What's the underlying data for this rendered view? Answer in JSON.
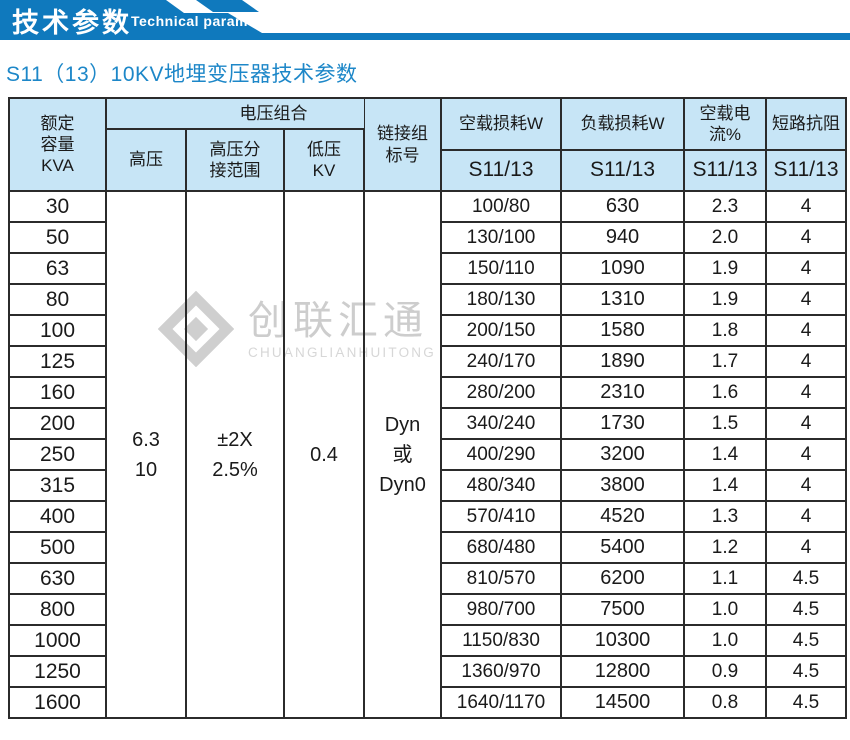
{
  "banner": {
    "title_cn": "技术参数",
    "title_en": "Technical parameter"
  },
  "page_title": "S11（13）10KV地埋变压器技术参数",
  "watermark": {
    "name_cn": "创联汇通",
    "name_en": "CHUANGLIANHUITONG"
  },
  "colors": {
    "banner_blue": "#0f79bd",
    "header_bg": "#c7e5f6",
    "title_blue": "#1d87c8",
    "border": "#2b2b2b",
    "watermark_gray": "#cdcdcd"
  },
  "table": {
    "headers": {
      "rated_capacity": "额定\n容量\nKVA",
      "voltage_combination": "电压组合",
      "high_voltage": "高压",
      "tap_range": "高压分\n接范围",
      "low_voltage": "低压\nKV",
      "connection_group": "链接组\n标号",
      "no_load_loss": "空载损耗W",
      "load_loss": "负载损耗W",
      "no_load_current": "空载电流%",
      "short_circuit_impedance": "短路抗阻",
      "sub_model_1": "S11/13",
      "sub_model_2": "S11/13",
      "sub_model_3": "S11/13",
      "sub_model_4": "S11/13"
    },
    "merged": {
      "high_voltage": "6.3\n10",
      "tap_range": "±2X\n2.5%",
      "low_voltage": "0.4",
      "connection_group": "Dyn\n或\nDyn0"
    },
    "rows": [
      [
        "30",
        "100/80",
        "630",
        "2.3",
        "4"
      ],
      [
        "50",
        "130/100",
        "940",
        "2.0",
        "4"
      ],
      [
        "63",
        "150/110",
        "1090",
        "1.9",
        "4"
      ],
      [
        "80",
        "180/130",
        "1310",
        "1.9",
        "4"
      ],
      [
        "100",
        "200/150",
        "1580",
        "1.8",
        "4"
      ],
      [
        "125",
        "240/170",
        "1890",
        "1.7",
        "4"
      ],
      [
        "160",
        "280/200",
        "2310",
        "1.6",
        "4"
      ],
      [
        "200",
        "340/240",
        "1730",
        "1.5",
        "4"
      ],
      [
        "250",
        "400/290",
        "3200",
        "1.4",
        "4"
      ],
      [
        "315",
        "480/340",
        "3800",
        "1.4",
        "4"
      ],
      [
        "400",
        "570/410",
        "4520",
        "1.3",
        "4"
      ],
      [
        "500",
        "680/480",
        "5400",
        "1.2",
        "4"
      ],
      [
        "630",
        "810/570",
        "6200",
        "1.1",
        "4.5"
      ],
      [
        "800",
        "980/700",
        "7500",
        "1.0",
        "4.5"
      ],
      [
        "1000",
        "1150/830",
        "10300",
        "1.0",
        "4.5"
      ],
      [
        "1250",
        "1360/970",
        "12800",
        "0.9",
        "4.5"
      ],
      [
        "1600",
        "1640/1170",
        "14500",
        "0.8",
        "4.5"
      ]
    ]
  }
}
